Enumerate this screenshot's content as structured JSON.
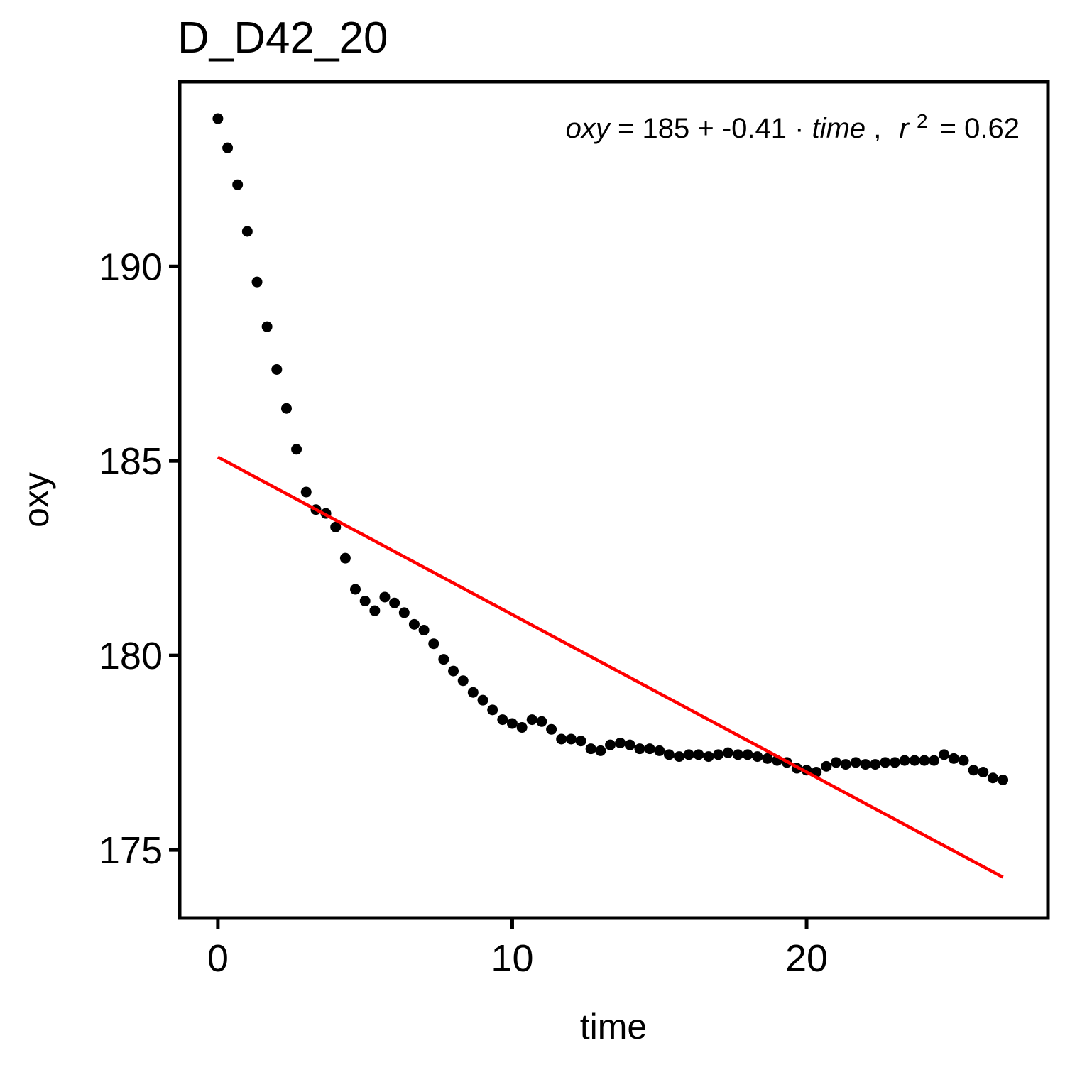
{
  "chart_data": {
    "type": "scatter",
    "title": "D_D42_20",
    "xlabel": "time",
    "ylabel": "oxy",
    "xlim": [
      -1.3,
      28.2
    ],
    "ylim": [
      173.25,
      194.75
    ],
    "x_ticks": [
      0,
      10,
      20
    ],
    "y_ticks": [
      175,
      180,
      185,
      190
    ],
    "grid": false,
    "annotation": {
      "lhs": "oxy",
      "eq": "=",
      "intercept": "185",
      "plus": "+",
      "slope": "-0.41",
      "dot": "·",
      "var": "time",
      "comma": ",",
      "r2_label": "r",
      "r2_exp": "2",
      "r2_value": "= 0.62"
    },
    "series": [
      {
        "type": "scatter",
        "color": "#000000",
        "points": [
          [
            0.0,
            193.8
          ],
          [
            0.33,
            193.05
          ],
          [
            0.67,
            192.1
          ],
          [
            1.0,
            190.9
          ],
          [
            1.33,
            189.6
          ],
          [
            1.67,
            188.45
          ],
          [
            2.0,
            187.35
          ],
          [
            2.33,
            186.35
          ],
          [
            2.67,
            185.3
          ],
          [
            3.0,
            184.2
          ],
          [
            3.33,
            183.75
          ],
          [
            3.67,
            183.65
          ],
          [
            4.0,
            183.3
          ],
          [
            4.33,
            182.5
          ],
          [
            4.67,
            181.7
          ],
          [
            5.0,
            181.4
          ],
          [
            5.33,
            181.15
          ],
          [
            5.67,
            181.5
          ],
          [
            6.0,
            181.35
          ],
          [
            6.33,
            181.1
          ],
          [
            6.67,
            180.8
          ],
          [
            7.0,
            180.65
          ],
          [
            7.33,
            180.3
          ],
          [
            7.67,
            179.9
          ],
          [
            8.0,
            179.6
          ],
          [
            8.33,
            179.35
          ],
          [
            8.67,
            179.05
          ],
          [
            9.0,
            178.85
          ],
          [
            9.33,
            178.6
          ],
          [
            9.67,
            178.35
          ],
          [
            10.0,
            178.25
          ],
          [
            10.33,
            178.15
          ],
          [
            10.67,
            178.35
          ],
          [
            11.0,
            178.3
          ],
          [
            11.33,
            178.1
          ],
          [
            11.67,
            177.85
          ],
          [
            12.0,
            177.85
          ],
          [
            12.33,
            177.8
          ],
          [
            12.67,
            177.6
          ],
          [
            13.0,
            177.55
          ],
          [
            13.33,
            177.7
          ],
          [
            13.67,
            177.75
          ],
          [
            14.0,
            177.7
          ],
          [
            14.33,
            177.6
          ],
          [
            14.67,
            177.6
          ],
          [
            15.0,
            177.55
          ],
          [
            15.33,
            177.45
          ],
          [
            15.67,
            177.4
          ],
          [
            16.0,
            177.45
          ],
          [
            16.33,
            177.45
          ],
          [
            16.67,
            177.4
          ],
          [
            17.0,
            177.45
          ],
          [
            17.33,
            177.5
          ],
          [
            17.67,
            177.45
          ],
          [
            18.0,
            177.45
          ],
          [
            18.33,
            177.4
          ],
          [
            18.67,
            177.35
          ],
          [
            19.0,
            177.3
          ],
          [
            19.33,
            177.25
          ],
          [
            19.67,
            177.1
          ],
          [
            20.0,
            177.05
          ],
          [
            20.33,
            177.0
          ],
          [
            20.67,
            177.15
          ],
          [
            21.0,
            177.25
          ],
          [
            21.33,
            177.2
          ],
          [
            21.67,
            177.25
          ],
          [
            22.0,
            177.2
          ],
          [
            22.33,
            177.2
          ],
          [
            22.67,
            177.25
          ],
          [
            23.0,
            177.25
          ],
          [
            23.33,
            177.3
          ],
          [
            23.67,
            177.3
          ],
          [
            24.0,
            177.3
          ],
          [
            24.33,
            177.3
          ],
          [
            24.67,
            177.45
          ],
          [
            25.0,
            177.35
          ],
          [
            25.33,
            177.3
          ],
          [
            25.67,
            177.05
          ],
          [
            26.0,
            177.0
          ],
          [
            26.33,
            176.85
          ],
          [
            26.67,
            176.8
          ]
        ]
      },
      {
        "type": "line",
        "color": "#ff0000",
        "points": [
          [
            0.0,
            185.1
          ],
          [
            26.67,
            174.3
          ]
        ]
      }
    ]
  }
}
